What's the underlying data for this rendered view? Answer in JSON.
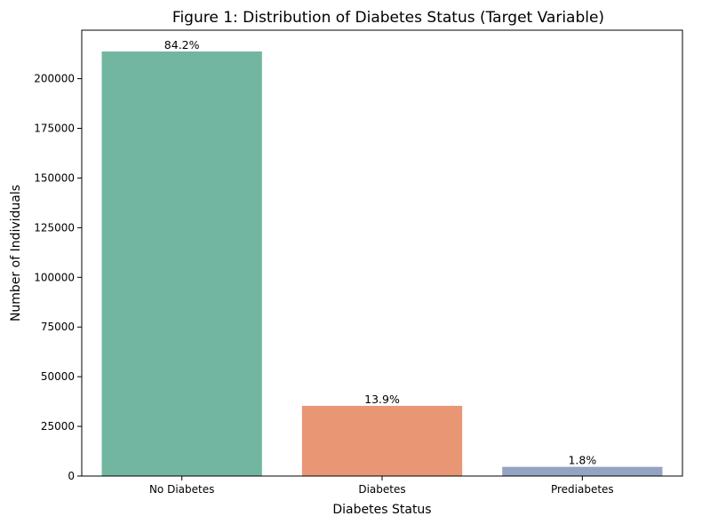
{
  "chart_data": {
    "type": "bar",
    "title": "Figure 1: Distribution of Diabetes Status (Target Variable)",
    "xlabel": "Diabetes Status",
    "ylabel": "Number of Individuals",
    "categories": [
      "No Diabetes",
      "Diabetes",
      "Prediabetes"
    ],
    "values": [
      213703,
      35346,
      4631
    ],
    "data_labels": [
      "84.2%",
      "13.9%",
      "1.8%"
    ],
    "colors": [
      "#72b6a1",
      "#e99675",
      "#95a3c3"
    ],
    "ylim": [
      0,
      224400
    ],
    "yticks": [
      0,
      25000,
      50000,
      75000,
      100000,
      125000,
      150000,
      175000,
      200000
    ],
    "grid": false,
    "legend": "none"
  }
}
